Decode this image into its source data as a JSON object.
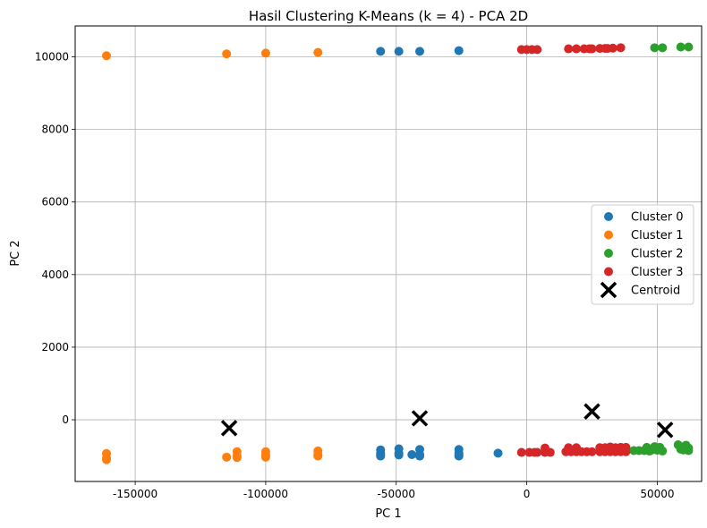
{
  "chart_data": {
    "type": "scatter",
    "title": "Hasil Clustering K-Means (k = 4) - PCA 2D",
    "xlabel": "PC 1",
    "ylabel": "PC 2",
    "xlim": [
      -173000,
      67000
    ],
    "ylim": [
      -1700,
      10850
    ],
    "xticks": [
      -150000,
      -100000,
      -50000,
      0,
      50000
    ],
    "yticks": [
      0,
      2000,
      4000,
      6000,
      8000,
      10000
    ],
    "grid": true,
    "legend_position": "center-right",
    "series": [
      {
        "name": "Cluster 0",
        "color": "#1f77b4",
        "points": [
          [
            -56000,
            10150
          ],
          [
            -49000,
            10150
          ],
          [
            -41000,
            10150
          ],
          [
            -26000,
            10170
          ],
          [
            -56000,
            -830
          ],
          [
            -56000,
            -920
          ],
          [
            -56000,
            -970
          ],
          [
            -56000,
            -1000
          ],
          [
            -49000,
            -800
          ],
          [
            -49000,
            -920
          ],
          [
            -49000,
            -970
          ],
          [
            -44000,
            -960
          ],
          [
            -41000,
            -820
          ],
          [
            -41000,
            -960
          ],
          [
            -41000,
            -1000
          ],
          [
            -26000,
            -820
          ],
          [
            -26000,
            -920
          ],
          [
            -26000,
            -970
          ],
          [
            -26000,
            -1000
          ],
          [
            -11000,
            -920
          ]
        ]
      },
      {
        "name": "Cluster 1",
        "color": "#ff7f0e",
        "points": [
          [
            -161000,
            10030
          ],
          [
            -115000,
            10080
          ],
          [
            -100000,
            10100
          ],
          [
            -80000,
            10120
          ],
          [
            -161000,
            -930
          ],
          [
            -161000,
            -1050
          ],
          [
            -161000,
            -1100
          ],
          [
            -115000,
            -1030
          ],
          [
            -111000,
            -880
          ],
          [
            -111000,
            -1000
          ],
          [
            -111000,
            -1040
          ],
          [
            -100000,
            -880
          ],
          [
            -100000,
            -970
          ],
          [
            -100000,
            -1030
          ],
          [
            -80000,
            -860
          ],
          [
            -80000,
            -960
          ],
          [
            -80000,
            -1000
          ]
        ]
      },
      {
        "name": "Cluster 2",
        "color": "#2ca02c",
        "points": [
          [
            49000,
            10250
          ],
          [
            52000,
            10250
          ],
          [
            59000,
            10270
          ],
          [
            62000,
            10270
          ],
          [
            41000,
            -850
          ],
          [
            43000,
            -850
          ],
          [
            45000,
            -850
          ],
          [
            46000,
            -760
          ],
          [
            47000,
            -860
          ],
          [
            48000,
            -830
          ],
          [
            49000,
            -740
          ],
          [
            50000,
            -840
          ],
          [
            51000,
            -760
          ],
          [
            52000,
            -860
          ],
          [
            58000,
            -690
          ],
          [
            59000,
            -810
          ],
          [
            60000,
            -830
          ],
          [
            61000,
            -700
          ],
          [
            62000,
            -780
          ],
          [
            62000,
            -850
          ]
        ]
      },
      {
        "name": "Cluster 3",
        "color": "#d62728",
        "points": [
          [
            -2000,
            10200
          ],
          [
            0,
            10200
          ],
          [
            2000,
            10200
          ],
          [
            4000,
            10200
          ],
          [
            16000,
            10220
          ],
          [
            19000,
            10220
          ],
          [
            22000,
            10220
          ],
          [
            24000,
            10220
          ],
          [
            25000,
            10220
          ],
          [
            28000,
            10230
          ],
          [
            30000,
            10230
          ],
          [
            31000,
            10230
          ],
          [
            33000,
            10240
          ],
          [
            36000,
            10250
          ],
          [
            -2000,
            -900
          ],
          [
            1000,
            -900
          ],
          [
            3000,
            -900
          ],
          [
            4000,
            -900
          ],
          [
            7000,
            -780
          ],
          [
            7000,
            -900
          ],
          [
            9000,
            -900
          ],
          [
            15000,
            -880
          ],
          [
            16000,
            -770
          ],
          [
            17000,
            -880
          ],
          [
            19000,
            -770
          ],
          [
            19000,
            -880
          ],
          [
            21000,
            -880
          ],
          [
            23000,
            -880
          ],
          [
            25000,
            -880
          ],
          [
            28000,
            -770
          ],
          [
            28000,
            -880
          ],
          [
            30000,
            -770
          ],
          [
            30000,
            -880
          ],
          [
            32000,
            -750
          ],
          [
            32000,
            -880
          ],
          [
            34000,
            -770
          ],
          [
            34000,
            -880
          ],
          [
            36000,
            -760
          ],
          [
            36000,
            -880
          ],
          [
            38000,
            -760
          ],
          [
            38000,
            -880
          ]
        ]
      }
    ],
    "centroids": {
      "name": "Centroid",
      "color": "#000000",
      "points": [
        [
          -114000,
          -230
        ],
        [
          -41000,
          40
        ],
        [
          25000,
          230
        ],
        [
          53000,
          -280
        ]
      ]
    }
  }
}
